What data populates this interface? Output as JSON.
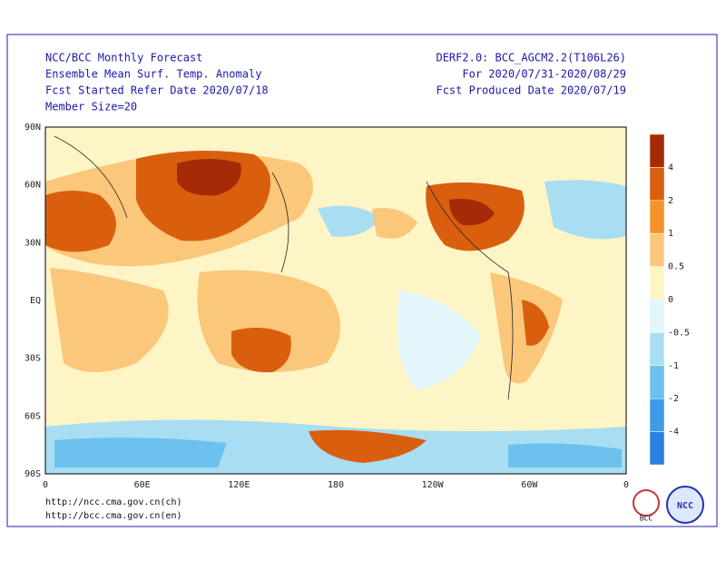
{
  "header": {
    "left": [
      "NCC/BCC Monthly Forecast",
      "Ensemble Mean Surf. Temp. Anomaly",
      "Fcst Started Refer Date 2020/07/18",
      "Member Size=20"
    ],
    "right": [
      "DERF2.0: BCC_AGCM2.2(T106L26)",
      "For 2020/07/31-2020/08/29",
      "Fcst Produced Date 2020/07/19"
    ]
  },
  "map": {
    "lat_labels": [
      "90N",
      "60N",
      "30N",
      "EQ",
      "30S",
      "60S",
      "90S"
    ],
    "lon_labels": [
      "0",
      "60E",
      "120E",
      "180",
      "120W",
      "60W",
      "0"
    ]
  },
  "colorbar": {
    "colors": [
      "#a52a08",
      "#d95f0e",
      "#f6922b",
      "#fbc77a",
      "#fdf5c6",
      "#e2f6fb",
      "#a8ddf2",
      "#6cc1ee",
      "#3d9be8",
      "#2b7fe0"
    ],
    "ticks": [
      4,
      2,
      1,
      0.5,
      0,
      -0.5,
      -1,
      -2,
      -4
    ]
  },
  "footer": {
    "urls": [
      "http://ncc.cma.gov.cn(ch)",
      "http://bcc.cma.gov.cn(en)"
    ],
    "logos": [
      "BCC",
      "NCC"
    ]
  }
}
